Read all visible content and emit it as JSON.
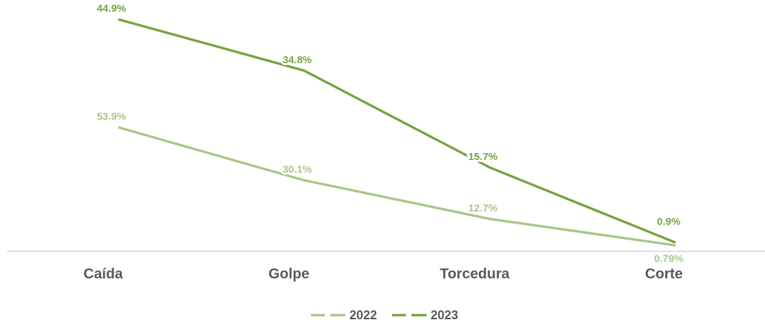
{
  "chart_data": {
    "type": "line",
    "categories": [
      "Caída",
      "Golpe",
      "Torcedura",
      "Corte"
    ],
    "series": [
      {
        "name": "2022",
        "color": "#a9c68a",
        "values": [
          53.9,
          30.1,
          12.7,
          0.79
        ],
        "value_labels": [
          "53.9%",
          "30.1%",
          "12.7%",
          "0.79%"
        ]
      },
      {
        "name": "2023",
        "color": "#76a33f",
        "axis": "y2",
        "values": [
          44.9,
          34.8,
          15.7,
          0.9
        ],
        "value_labels": [
          "44.9%",
          "34.8%",
          "15.7%",
          "0.9%"
        ]
      }
    ],
    "ylim": [
      0,
      105
    ],
    "y2lim": [
      0,
      46
    ],
    "grid": false,
    "legend": "bottom"
  }
}
